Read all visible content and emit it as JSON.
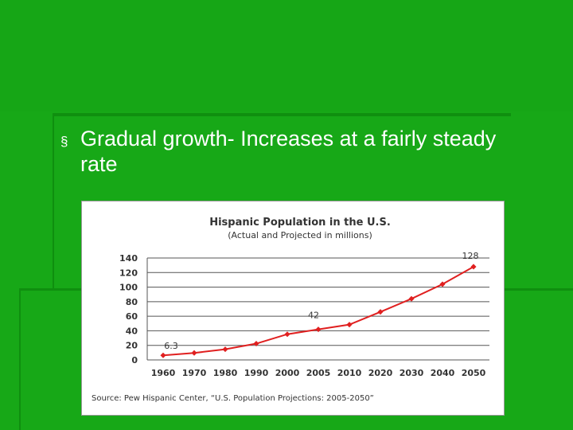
{
  "slide": {
    "bullet_marker": "§",
    "bullet_text": "Gradual growth- Increases at a fairly steady rate"
  },
  "chart_data": {
    "type": "line",
    "title": "Hispanic Population in the U.S.",
    "subtitle": "(Actual and Projected in millions)",
    "source": "Source: Pew Hispanic Center, “U.S. Population Projections: 2005-2050”",
    "categories": [
      "1960",
      "1970",
      "1980",
      "1990",
      "2000",
      "2005",
      "2010",
      "2020",
      "2030",
      "2040",
      "2050"
    ],
    "series": [
      {
        "values": [
          6.3,
          9.6,
          14.6,
          22.4,
          35.3,
          42,
          48.5,
          66,
          84,
          104,
          128
        ],
        "color": "#e02020"
      }
    ],
    "annotations": [
      {
        "category_index": 0,
        "label": "6.3"
      },
      {
        "category_index": 5,
        "label": "42"
      },
      {
        "category_index": 10,
        "label": "128"
      }
    ],
    "yticks": [
      "0",
      "20",
      "40",
      "60",
      "80",
      "100",
      "120",
      "140"
    ],
    "ylim": [
      0,
      140
    ],
    "grid": true,
    "legend": "none"
  }
}
